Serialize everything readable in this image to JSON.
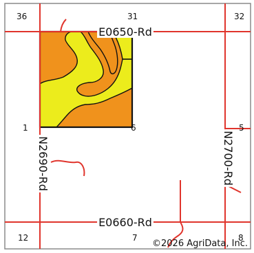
{
  "map": {
    "sections": {
      "nw": "36",
      "n": "31",
      "ne": "32",
      "field_sw": "1",
      "field_se": "6",
      "e": "5",
      "sw": "12",
      "s": "7",
      "se": "8"
    },
    "roads": {
      "north": "E0650-Rd",
      "south": "E0660-Rd",
      "west": "N2690-Rd",
      "east": "N2700-Rd"
    },
    "copyright": "©2026 AgriData, Inc.",
    "colors": {
      "road": "#e0342c",
      "soil_orange": "#f0921c",
      "soil_yellow": "#ecec1c",
      "boundary": "#111111",
      "frame": "#8a8a8a"
    }
  }
}
